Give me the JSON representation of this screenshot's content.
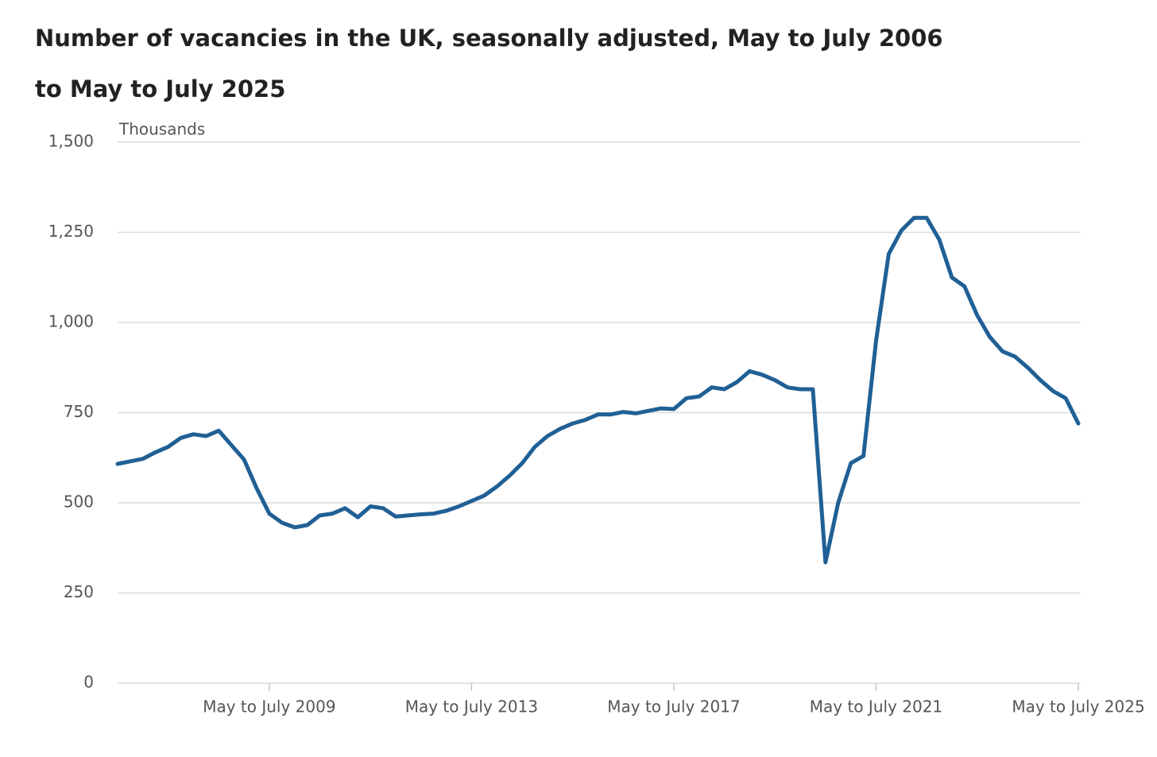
{
  "chart_data": {
    "type": "line",
    "title": "Number of vacancies in the UK, seasonally adjusted, May to July 2006 to May to July 2025",
    "y_label": "Thousands",
    "categories": [
      null,
      null,
      null,
      null,
      null,
      null,
      null,
      null,
      null,
      null,
      null,
      null,
      "May to July 2009",
      null,
      null,
      null,
      null,
      null,
      null,
      null,
      null,
      null,
      null,
      null,
      null,
      null,
      null,
      null,
      "May to July 2013",
      null,
      null,
      null,
      null,
      null,
      null,
      null,
      null,
      null,
      null,
      null,
      null,
      null,
      null,
      null,
      "May to July 2017",
      null,
      null,
      null,
      null,
      null,
      null,
      null,
      null,
      null,
      null,
      null,
      null,
      null,
      null,
      null,
      "May to July 2021",
      null,
      null,
      null,
      null,
      null,
      null,
      null,
      null,
      null,
      null,
      null,
      null,
      null,
      null,
      null,
      "May to July 2025"
    ],
    "values": [
      608,
      615,
      622,
      640,
      655,
      680,
      690,
      685,
      700,
      660,
      620,
      540,
      470,
      445,
      432,
      438,
      465,
      470,
      485,
      460,
      490,
      485,
      462,
      465,
      468,
      470,
      478,
      490,
      505,
      520,
      545,
      575,
      610,
      655,
      685,
      705,
      720,
      730,
      745,
      745,
      752,
      748,
      755,
      762,
      760,
      790,
      795,
      820,
      815,
      835,
      865,
      855,
      840,
      820,
      815,
      815,
      335,
      500,
      610,
      630,
      950,
      1190,
      1255,
      1290,
      1290,
      1230,
      1125,
      1100,
      1020,
      960,
      920,
      905,
      875,
      840,
      810,
      790,
      720
    ],
    "color": "#206095",
    "ylim": [
      0,
      1500
    ],
    "yticks": [
      0,
      250,
      500,
      750,
      {
        "value": 1000,
        "label": "1,000"
      },
      {
        "value": 1250,
        "label": "1,250"
      },
      {
        "value": 1500,
        "label": "1,500"
      }
    ],
    "grid": true
  }
}
